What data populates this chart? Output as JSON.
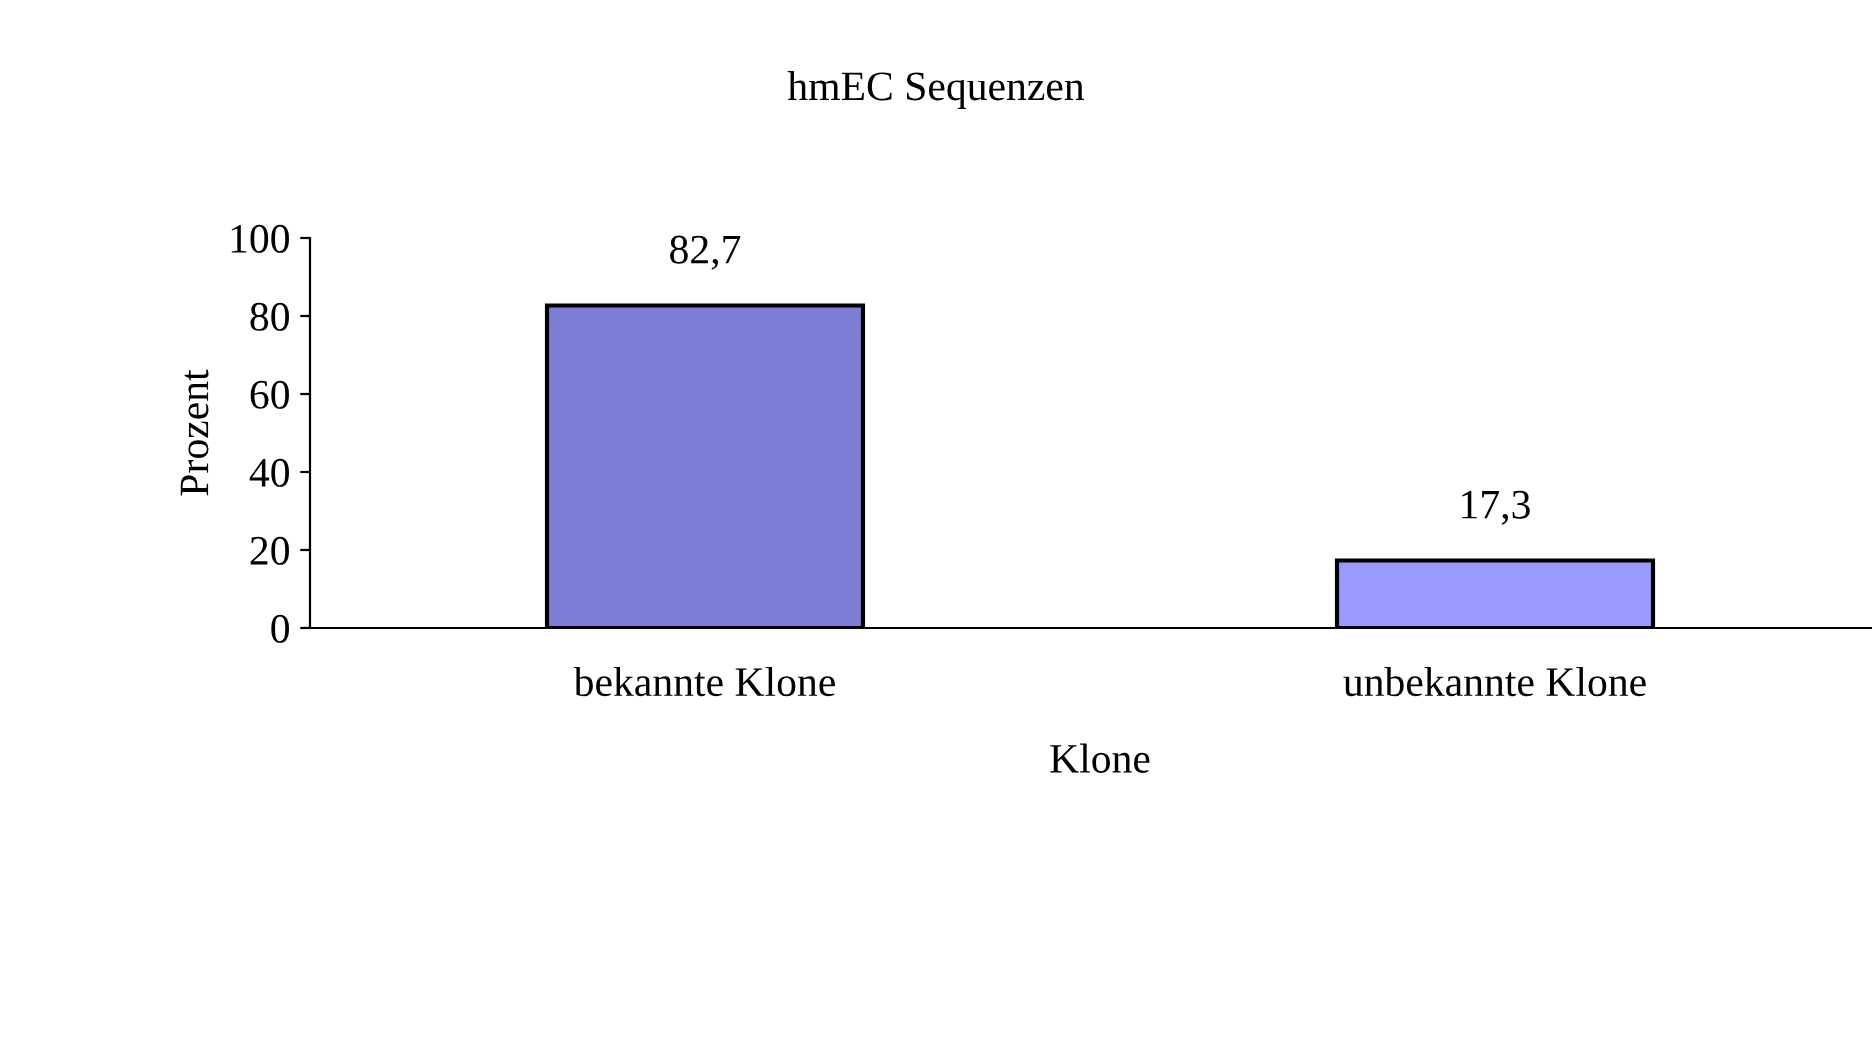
{
  "chart_data": {
    "type": "bar",
    "title": "hmEC Sequenzen",
    "xlabel": "Klone",
    "ylabel": "Prozent",
    "categories": [
      "bekannte Klone",
      "unbekannte Klone"
    ],
    "values": [
      82.7,
      17.3
    ],
    "value_labels": [
      "82,7",
      "17,3"
    ],
    "colors": [
      "#7d7dd6",
      "#9999ff"
    ],
    "ylim": [
      0,
      100
    ],
    "yticks": [
      0,
      20,
      40,
      60,
      80,
      100
    ],
    "grid": false,
    "legend": false
  }
}
